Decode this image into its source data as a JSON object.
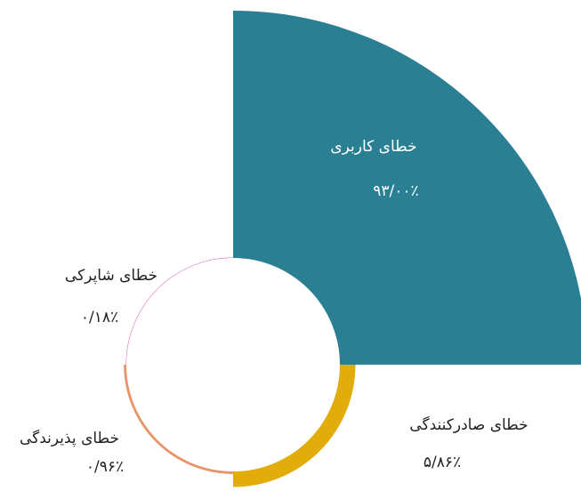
{
  "chart_data": {
    "type": "rose",
    "categories": [
      "خطای کاربری",
      "خطای صادرکنندگی",
      "خطای پذیرندگی",
      "خطای شاپرکی"
    ],
    "values": [
      93.0,
      5.86,
      0.96,
      0.18
    ],
    "value_labels": [
      "۹۳/۰۰٪",
      "۵/۸۶٪",
      "۰/۹۶٪",
      "۰/۱۸٪"
    ],
    "colors": [
      "#2a7f93",
      "#e2ac0a",
      "#e8956b",
      "#d86bb8"
    ]
  }
}
